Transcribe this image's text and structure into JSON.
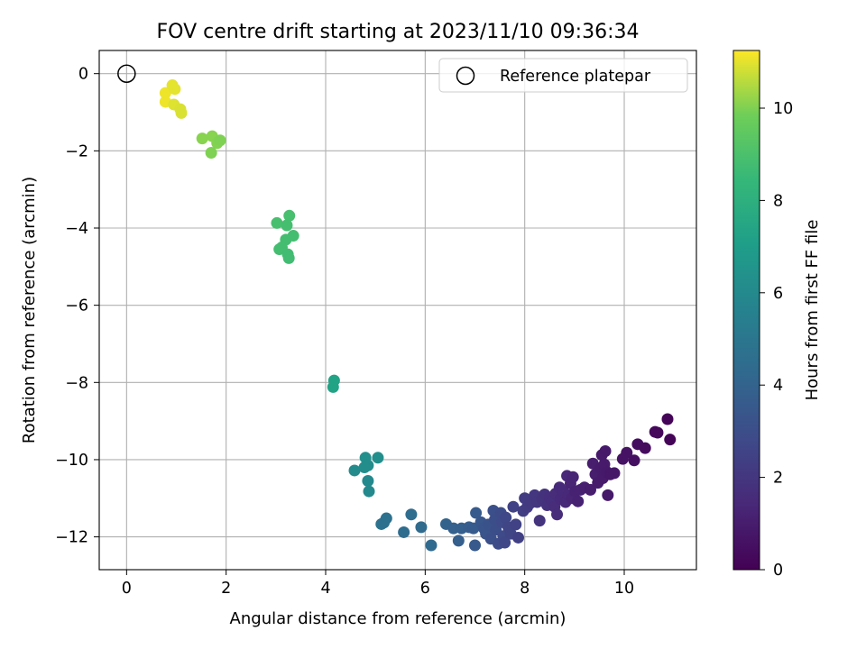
{
  "chart_data": {
    "type": "scatter",
    "title": "FOV centre drift starting at 2023/11/10 09:36:34",
    "xlabel": "Angular distance from reference (arcmin)",
    "ylabel": "Rotation from reference (arcmin)",
    "xlim": [
      -0.55,
      11.45
    ],
    "ylim": [
      -12.85,
      0.6
    ],
    "xticks": [
      "0",
      "2",
      "4",
      "6",
      "8",
      "10"
    ],
    "yticks": [
      "0",
      "−2",
      "−4",
      "−6",
      "−8",
      "−10",
      "−12"
    ],
    "grid": true,
    "legend": {
      "placement": "top-right",
      "entries": [
        "Reference platepar"
      ]
    },
    "reference_point": {
      "x": 0,
      "y": 0,
      "marker": "hollow-circle"
    },
    "colorbar": {
      "label": "Hours from first FF file",
      "range": [
        0,
        11.25
      ],
      "ticks": [
        "0",
        "2",
        "4",
        "6",
        "8",
        "10"
      ],
      "colormap": "viridis"
    },
    "points": [
      {
        "x": 0.78,
        "y": -0.5,
        "c": 11.1
      },
      {
        "x": 0.78,
        "y": -0.73,
        "c": 11.1
      },
      {
        "x": 0.92,
        "y": -0.3,
        "c": 11.0
      },
      {
        "x": 0.97,
        "y": -0.4,
        "c": 11.0
      },
      {
        "x": 0.95,
        "y": -0.8,
        "c": 10.95
      },
      {
        "x": 1.08,
        "y": -0.92,
        "c": 10.9
      },
      {
        "x": 1.1,
        "y": -1.02,
        "c": 10.9
      },
      {
        "x": 1.52,
        "y": -1.68,
        "c": 10.1
      },
      {
        "x": 1.72,
        "y": -1.62,
        "c": 10.1
      },
      {
        "x": 1.82,
        "y": -1.8,
        "c": 10.05
      },
      {
        "x": 1.88,
        "y": -1.73,
        "c": 10.0
      },
      {
        "x": 1.7,
        "y": -2.05,
        "c": 10.0
      },
      {
        "x": 3.02,
        "y": -3.87,
        "c": 8.9
      },
      {
        "x": 3.27,
        "y": -3.68,
        "c": 8.9
      },
      {
        "x": 3.22,
        "y": -3.93,
        "c": 8.85
      },
      {
        "x": 3.35,
        "y": -4.2,
        "c": 8.8
      },
      {
        "x": 3.2,
        "y": -4.3,
        "c": 8.8
      },
      {
        "x": 3.12,
        "y": -4.5,
        "c": 8.8
      },
      {
        "x": 3.07,
        "y": -4.55,
        "c": 8.8
      },
      {
        "x": 3.24,
        "y": -4.68,
        "c": 8.75
      },
      {
        "x": 3.26,
        "y": -4.78,
        "c": 8.75
      },
      {
        "x": 4.17,
        "y": -7.95,
        "c": 7.3
      },
      {
        "x": 4.15,
        "y": -8.12,
        "c": 7.3
      },
      {
        "x": 4.8,
        "y": -9.95,
        "c": 6.3
      },
      {
        "x": 5.05,
        "y": -9.95,
        "c": 6.3
      },
      {
        "x": 4.85,
        "y": -10.15,
        "c": 6.2
      },
      {
        "x": 4.78,
        "y": -10.2,
        "c": 6.2
      },
      {
        "x": 4.58,
        "y": -10.28,
        "c": 6.1
      },
      {
        "x": 4.85,
        "y": -10.55,
        "c": 6.0
      },
      {
        "x": 4.87,
        "y": -10.82,
        "c": 6.0
      },
      {
        "x": 5.12,
        "y": -11.67,
        "c": 4.8
      },
      {
        "x": 5.22,
        "y": -11.52,
        "c": 4.7
      },
      {
        "x": 5.17,
        "y": -11.63,
        "c": 4.7
      },
      {
        "x": 5.57,
        "y": -11.88,
        "c": 4.5
      },
      {
        "x": 5.72,
        "y": -11.42,
        "c": 4.5
      },
      {
        "x": 5.92,
        "y": -11.75,
        "c": 4.4
      },
      {
        "x": 6.12,
        "y": -12.22,
        "c": 4.3
      },
      {
        "x": 6.42,
        "y": -11.67,
        "c": 4.0
      },
      {
        "x": 6.57,
        "y": -11.78,
        "c": 3.9
      },
      {
        "x": 6.67,
        "y": -12.1,
        "c": 3.8
      },
      {
        "x": 6.73,
        "y": -11.78,
        "c": 3.8
      },
      {
        "x": 6.88,
        "y": -11.75,
        "c": 3.7
      },
      {
        "x": 6.97,
        "y": -11.78,
        "c": 3.6
      },
      {
        "x": 7.02,
        "y": -11.38,
        "c": 3.6
      },
      {
        "x": 7.0,
        "y": -12.22,
        "c": 3.5
      },
      {
        "x": 7.12,
        "y": -11.62,
        "c": 3.4
      },
      {
        "x": 7.18,
        "y": -11.78,
        "c": 3.3
      },
      {
        "x": 7.22,
        "y": -11.92,
        "c": 3.3
      },
      {
        "x": 7.27,
        "y": -11.68,
        "c": 3.2
      },
      {
        "x": 7.32,
        "y": -12.05,
        "c": 3.1
      },
      {
        "x": 7.37,
        "y": -11.32,
        "c": 3.1
      },
      {
        "x": 7.4,
        "y": -11.55,
        "c": 3.0
      },
      {
        "x": 7.42,
        "y": -11.82,
        "c": 3.0
      },
      {
        "x": 7.47,
        "y": -12.18,
        "c": 2.9
      },
      {
        "x": 7.52,
        "y": -11.38,
        "c": 2.9
      },
      {
        "x": 7.54,
        "y": -11.62,
        "c": 2.8
      },
      {
        "x": 7.57,
        "y": -11.98,
        "c": 2.8
      },
      {
        "x": 7.6,
        "y": -12.15,
        "c": 2.7
      },
      {
        "x": 7.62,
        "y": -11.5,
        "c": 2.7
      },
      {
        "x": 7.67,
        "y": -11.75,
        "c": 2.6
      },
      {
        "x": 7.72,
        "y": -11.92,
        "c": 2.6
      },
      {
        "x": 7.77,
        "y": -11.22,
        "c": 2.5
      },
      {
        "x": 7.82,
        "y": -11.68,
        "c": 2.5
      },
      {
        "x": 7.87,
        "y": -12.02,
        "c": 2.4
      },
      {
        "x": 7.97,
        "y": -11.33,
        "c": 2.3
      },
      {
        "x": 8.0,
        "y": -11.0,
        "c": 2.2
      },
      {
        "x": 8.05,
        "y": -11.23,
        "c": 2.2
      },
      {
        "x": 8.12,
        "y": -11.12,
        "c": 2.1
      },
      {
        "x": 8.2,
        "y": -10.92,
        "c": 2.0
      },
      {
        "x": 8.25,
        "y": -11.1,
        "c": 2.0
      },
      {
        "x": 8.3,
        "y": -11.58,
        "c": 1.9
      },
      {
        "x": 8.35,
        "y": -11.02,
        "c": 1.9
      },
      {
        "x": 8.4,
        "y": -10.9,
        "c": 1.8
      },
      {
        "x": 8.45,
        "y": -11.18,
        "c": 1.8
      },
      {
        "x": 8.5,
        "y": -10.98,
        "c": 1.7
      },
      {
        "x": 8.55,
        "y": -11.08,
        "c": 1.7
      },
      {
        "x": 8.6,
        "y": -11.22,
        "c": 1.6
      },
      {
        "x": 8.62,
        "y": -10.88,
        "c": 1.6
      },
      {
        "x": 8.65,
        "y": -11.42,
        "c": 1.6
      },
      {
        "x": 8.7,
        "y": -10.72,
        "c": 1.5
      },
      {
        "x": 8.72,
        "y": -11.02,
        "c": 1.5
      },
      {
        "x": 8.77,
        "y": -10.82,
        "c": 1.5
      },
      {
        "x": 8.82,
        "y": -11.1,
        "c": 1.4
      },
      {
        "x": 8.85,
        "y": -10.42,
        "c": 1.4
      },
      {
        "x": 8.88,
        "y": -10.92,
        "c": 1.4
      },
      {
        "x": 8.92,
        "y": -10.62,
        "c": 1.3
      },
      {
        "x": 8.95,
        "y": -11.0,
        "c": 1.3
      },
      {
        "x": 8.97,
        "y": -10.45,
        "c": 1.3
      },
      {
        "x": 9.02,
        "y": -10.82,
        "c": 1.2
      },
      {
        "x": 9.07,
        "y": -11.08,
        "c": 1.2
      },
      {
        "x": 9.12,
        "y": -10.78,
        "c": 1.2
      },
      {
        "x": 9.2,
        "y": -10.72,
        "c": 1.1
      },
      {
        "x": 9.32,
        "y": -10.78,
        "c": 1.0
      },
      {
        "x": 9.37,
        "y": -10.1,
        "c": 1.0
      },
      {
        "x": 9.42,
        "y": -10.38,
        "c": 1.0
      },
      {
        "x": 9.47,
        "y": -10.6,
        "c": 0.95
      },
      {
        "x": 9.52,
        "y": -10.22,
        "c": 0.95
      },
      {
        "x": 9.55,
        "y": -9.88,
        "c": 0.9
      },
      {
        "x": 9.57,
        "y": -10.48,
        "c": 0.9
      },
      {
        "x": 9.6,
        "y": -10.12,
        "c": 0.9
      },
      {
        "x": 9.62,
        "y": -9.78,
        "c": 0.85
      },
      {
        "x": 9.65,
        "y": -10.32,
        "c": 0.85
      },
      {
        "x": 9.67,
        "y": -10.92,
        "c": 0.85
      },
      {
        "x": 9.72,
        "y": -10.38,
        "c": 0.8
      },
      {
        "x": 9.8,
        "y": -10.35,
        "c": 0.8
      },
      {
        "x": 9.97,
        "y": -9.98,
        "c": 0.6
      },
      {
        "x": 10.05,
        "y": -9.82,
        "c": 0.6
      },
      {
        "x": 10.2,
        "y": -10.02,
        "c": 0.5
      },
      {
        "x": 10.27,
        "y": -9.6,
        "c": 0.45
      },
      {
        "x": 10.42,
        "y": -9.7,
        "c": 0.4
      },
      {
        "x": 10.62,
        "y": -9.28,
        "c": 0.3
      },
      {
        "x": 10.67,
        "y": -9.3,
        "c": 0.25
      },
      {
        "x": 10.87,
        "y": -8.95,
        "c": 0.1
      },
      {
        "x": 10.92,
        "y": -9.48,
        "c": 0.1
      }
    ]
  }
}
